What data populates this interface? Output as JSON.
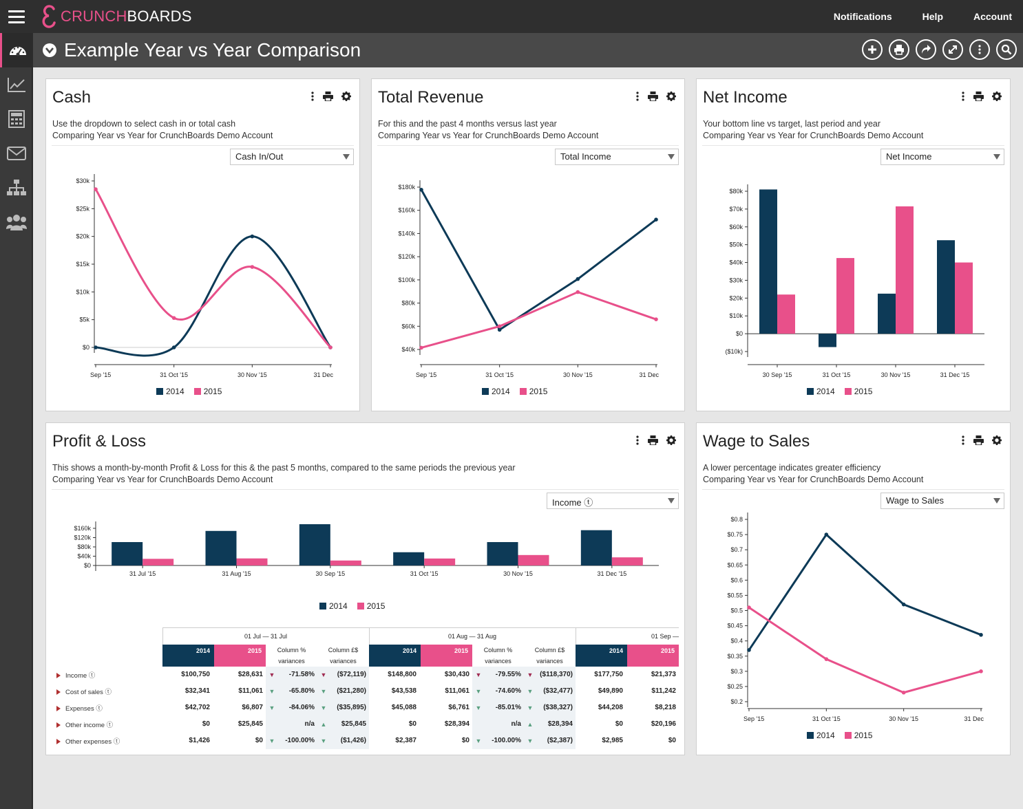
{
  "app": {
    "brand_part1": "CRUNCH",
    "brand_part2": "BOARDS"
  },
  "topnav": {
    "notifications": "Notifications",
    "help": "Help",
    "account": "Account"
  },
  "sidebar": {
    "items": [
      "dashboard-icon",
      "chart-line-icon",
      "calculator-icon",
      "mail-icon",
      "org-chart-icon",
      "users-icon"
    ]
  },
  "page": {
    "title": "Example Year vs Year Comparison"
  },
  "colors": {
    "series_2014": "#0d3a57",
    "series_2015": "#e8508a",
    "accent": "#e8508a"
  },
  "legend": {
    "y2014": "2014",
    "y2015": "2015"
  },
  "cards": {
    "cash": {
      "title": "Cash",
      "desc1": "Use the dropdown to select cash in or total cash",
      "desc2": "Comparing Year vs Year for CrunchBoards Demo Account",
      "select": "Cash In/Out"
    },
    "revenue": {
      "title": "Total Revenue",
      "desc1": "For this and the past 4 months versus last year",
      "desc2": "Comparing Year vs Year for CrunchBoards Demo Account",
      "select": "Total Income"
    },
    "netincome": {
      "title": "Net Income",
      "desc1": "Your bottom line vs target, last period and year",
      "desc2": "Comparing Year vs Year for CrunchBoards Demo Account",
      "select": "Net Income"
    },
    "pl": {
      "title": "Profit & Loss",
      "desc1": "This shows a month-by-month Profit & Loss for this & the past 5 months, compared to the same periods the previous year",
      "desc2": "Comparing Year vs Year for CrunchBoards Demo Account",
      "select": "Income ⓣ"
    },
    "wage": {
      "title": "Wage to Sales",
      "desc1": "A lower percentage indicates greater efficiency",
      "desc2": "Comparing Year vs Year for CrunchBoards Demo Account",
      "select": "Wage to Sales"
    }
  },
  "chart_data": [
    {
      "id": "cash",
      "type": "line",
      "title": "Cash",
      "categories": [
        "Sep '15",
        "31 Oct '15",
        "30 Nov '15",
        "31 Dec '15"
      ],
      "tick_labels": [
        "Sep '15",
        "31 Oct '15",
        "30 Nov '15",
        "31 Dec"
      ],
      "y_ticks": [
        "$0",
        "$5k",
        "$10k",
        "$15k",
        "$20k",
        "$25k",
        "$30k"
      ],
      "ylim": [
        0,
        30000
      ],
      "series": [
        {
          "name": "2014",
          "values": [
            0,
            0,
            20000,
            0
          ]
        },
        {
          "name": "2015",
          "values": [
            28500,
            5300,
            14500,
            0
          ]
        }
      ]
    },
    {
      "id": "revenue",
      "type": "line",
      "title": "Total Revenue",
      "categories": [
        "Sep '15",
        "31 Oct '15",
        "30 Nov '15",
        "31 Dec '15"
      ],
      "tick_labels": [
        "Sep '15",
        "31 Oct '15",
        "30 Nov '15",
        "31 Dec"
      ],
      "y_ticks": [
        "$40k",
        "$60k",
        "$80k",
        "$100k",
        "$120k",
        "$140k",
        "$160k",
        "$180k"
      ],
      "ylim": [
        40000,
        180000
      ],
      "series": [
        {
          "name": "2014",
          "values": [
            177750,
            57000,
            100750,
            152000
          ]
        },
        {
          "name": "2015",
          "values": [
            41500,
            60000,
            89500,
            66000
          ]
        }
      ]
    },
    {
      "id": "netincome",
      "type": "bar",
      "title": "Net Income",
      "categories": [
        "30 Sep '15",
        "31 Oct '15",
        "30 Nov '15",
        "31 Dec '15"
      ],
      "y_ticks": [
        "($10k)",
        "$0",
        "$10k",
        "$20k",
        "$30k",
        "$40k",
        "$50k",
        "$60k",
        "$70k",
        "$80k"
      ],
      "ylim": [
        -10000,
        80000
      ],
      "series": [
        {
          "name": "2014",
          "values": [
            81000,
            -7500,
            22500,
            52500
          ]
        },
        {
          "name": "2015",
          "values": [
            22000,
            42500,
            71500,
            40000
          ]
        }
      ]
    },
    {
      "id": "pl",
      "type": "bar",
      "title": "Profit & Loss",
      "categories": [
        "31 Jul '15",
        "31 Aug '15",
        "30 Sep '15",
        "31 Oct '15",
        "30 Nov '15",
        "31 Dec '15"
      ],
      "y_ticks": [
        "$0",
        "$40k",
        "$80k",
        "$120k",
        "$160k"
      ],
      "ylim": [
        0,
        160000
      ],
      "series": [
        {
          "name": "2014",
          "values": [
            100750,
            148800,
            177750,
            57000,
            100750,
            152000
          ]
        },
        {
          "name": "2015",
          "values": [
            28631,
            30430,
            21373,
            30000,
            45000,
            35000
          ]
        }
      ]
    },
    {
      "id": "wage",
      "type": "line",
      "title": "Wage to Sales",
      "categories": [
        "Sep '15",
        "31 Oct '15",
        "30 Nov '15",
        "31 Dec '15"
      ],
      "tick_labels": [
        "Sep '15",
        "31 Oct '15",
        "30 Nov '15",
        "31 Dec"
      ],
      "y_ticks": [
        "$0.2",
        "$0.25",
        "$0.3",
        "$0.35",
        "$0.4",
        "$0.45",
        "$0.5",
        "$0.55",
        "$0.6",
        "$0.65",
        "$0.7",
        "$0.75",
        "$0.8"
      ],
      "ylim": [
        0.2,
        0.8
      ],
      "series": [
        {
          "name": "2014",
          "values": [
            0.37,
            0.75,
            0.52,
            0.42
          ]
        },
        {
          "name": "2015",
          "values": [
            0.51,
            0.34,
            0.23,
            0.3
          ]
        }
      ]
    }
  ],
  "pl_table": {
    "periods": [
      "01 Jul — 31 Jul",
      "01 Aug — 31 Aug",
      "01 Sep —"
    ],
    "header": {
      "y2014": "2014",
      "y2015": "2015",
      "colpct1": "Column %",
      "colpct2": "variances",
      "colgbp1": "Column £$",
      "colgbp2": "variances"
    },
    "rows": [
      {
        "label": "Income ⓣ",
        "p1": [
          "$100,750",
          "$28,631",
          "down",
          "-71.58%",
          "down",
          "($72,119)"
        ],
        "p2": [
          "$148,800",
          "$30,430",
          "down",
          "-79.55%",
          "down",
          "($118,370)"
        ],
        "p3": [
          "$177,750",
          "$21,373"
        ]
      },
      {
        "label": "Cost of sales ⓣ",
        "p1": [
          "$32,341",
          "$11,061",
          "good",
          "-65.80%",
          "good",
          "($21,280)"
        ],
        "p2": [
          "$43,538",
          "$11,061",
          "good",
          "-74.60%",
          "good",
          "($32,477)"
        ],
        "p3": [
          "$49,890",
          "$11,242"
        ]
      },
      {
        "label": "Expenses ⓣ",
        "p1": [
          "$42,702",
          "$6,807",
          "good",
          "-84.06%",
          "good",
          "($35,895)"
        ],
        "p2": [
          "$45,088",
          "$6,761",
          "good",
          "-85.01%",
          "good",
          "($38,327)"
        ],
        "p3": [
          "$44,208",
          "$8,218"
        ]
      },
      {
        "label": "Other income ⓣ",
        "p1": [
          "$0",
          "$25,845",
          "",
          "n/a",
          "up",
          "$25,845"
        ],
        "p2": [
          "$0",
          "$28,394",
          "",
          "n/a",
          "up",
          "$28,394"
        ],
        "p3": [
          "$0",
          "$20,196"
        ]
      },
      {
        "label": "Other expenses ⓣ",
        "p1": [
          "$1,426",
          "$0",
          "good",
          "-100.00%",
          "good",
          "($1,426)"
        ],
        "p2": [
          "$2,387",
          "$0",
          "good",
          "-100.00%",
          "good",
          "($2,387)"
        ],
        "p3": [
          "$2,985",
          "$0"
        ]
      }
    ]
  }
}
